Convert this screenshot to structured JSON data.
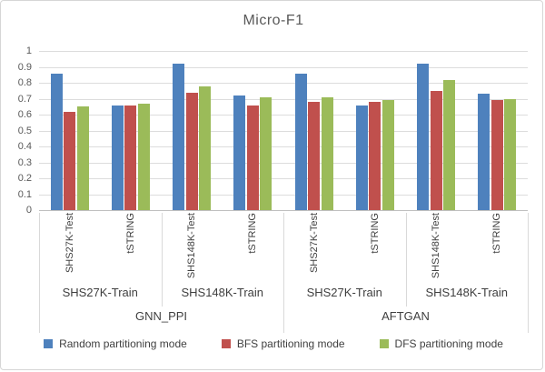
{
  "title": "Micro-F1",
  "colors": {
    "random_blue": "#4e81bd",
    "bfs_red": "#c0504d",
    "dfs_green": "#9bbb59",
    "gridline": "#dcdcdc",
    "axis": "#bfbfbf",
    "text": "#595959"
  },
  "y_axis": {
    "tick_labels": [
      "1",
      "0.9",
      "0.8",
      "0.7",
      "0.6",
      "0.5",
      "0.4",
      "0.3",
      "0.2",
      "0.1",
      "0"
    ],
    "min": 0,
    "max": 1
  },
  "chart_data": {
    "type": "bar",
    "title": "Micro-F1",
    "xlabel": "",
    "ylabel": "",
    "ylim": [
      0,
      1
    ],
    "grid": true,
    "legend_position": "bottom",
    "categories": [
      "SHS27K-Test",
      "tSTRING",
      "SHS148K-Test",
      "tSTRING",
      "SHS27K-Test",
      "tSTRING",
      "SHS148K-Test",
      "tSTRING"
    ],
    "category_groups": [
      {
        "label": "SHS27K-Train",
        "span": 2
      },
      {
        "label": "SHS148K-Train",
        "span": 2
      },
      {
        "label": "SHS27K-Train",
        "span": 2
      },
      {
        "label": "SHS148K-Train",
        "span": 2
      }
    ],
    "top_groups": [
      {
        "label": "GNN_PPI",
        "span": 4
      },
      {
        "label": "AFTGAN",
        "span": 4
      }
    ],
    "series": [
      {
        "name": "Random partitioning mode",
        "color": "#4e81bd",
        "values": [
          0.86,
          0.66,
          0.92,
          0.72,
          0.86,
          0.66,
          0.92,
          0.73
        ]
      },
      {
        "name": "BFS partitioning mode",
        "color": "#c0504d",
        "values": [
          0.62,
          0.66,
          0.74,
          0.66,
          0.68,
          0.68,
          0.75,
          0.69
        ]
      },
      {
        "name": "DFS partitioning mode",
        "color": "#9bbb59",
        "values": [
          0.65,
          0.67,
          0.78,
          0.71,
          0.71,
          0.69,
          0.82,
          0.7
        ]
      }
    ]
  }
}
